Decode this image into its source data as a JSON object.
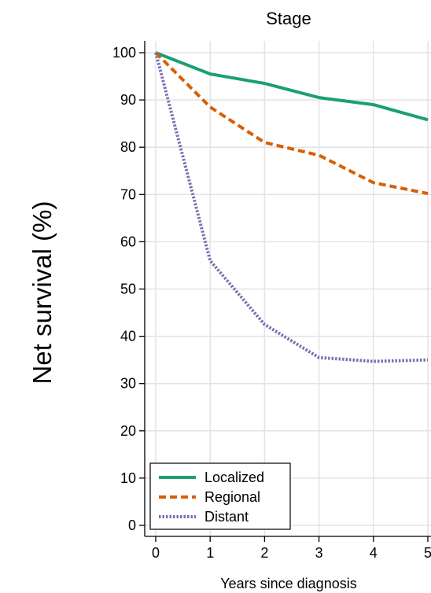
{
  "chart_data": {
    "type": "line",
    "title": "Stage",
    "xlabel": "Years since diagnosis",
    "ylabel": "Net survival (%)",
    "x": [
      0,
      1,
      2,
      3,
      4,
      5
    ],
    "xlim": [
      0,
      5
    ],
    "ylim": [
      0,
      100
    ],
    "xticks": [
      "0",
      "1",
      "2",
      "3",
      "4",
      "5"
    ],
    "yticks": [
      "0",
      "10",
      "20",
      "30",
      "40",
      "50",
      "60",
      "70",
      "80",
      "90",
      "100"
    ],
    "grid": true,
    "legend_position": "bottom-left",
    "series": [
      {
        "name": "Localized",
        "values": [
          100,
          95.5,
          93.5,
          90.5,
          89,
          85.8
        ],
        "color": "#1b9e77",
        "dash": "solid"
      },
      {
        "name": "Regional",
        "values": [
          100,
          88.5,
          81,
          78.3,
          72.5,
          70.2
        ],
        "color": "#d95f02",
        "dash": "dashed"
      },
      {
        "name": "Distant",
        "values": [
          100,
          56,
          42.5,
          35.5,
          34.7,
          35
        ],
        "color": "#7570b3",
        "dash": "dotted"
      }
    ]
  }
}
